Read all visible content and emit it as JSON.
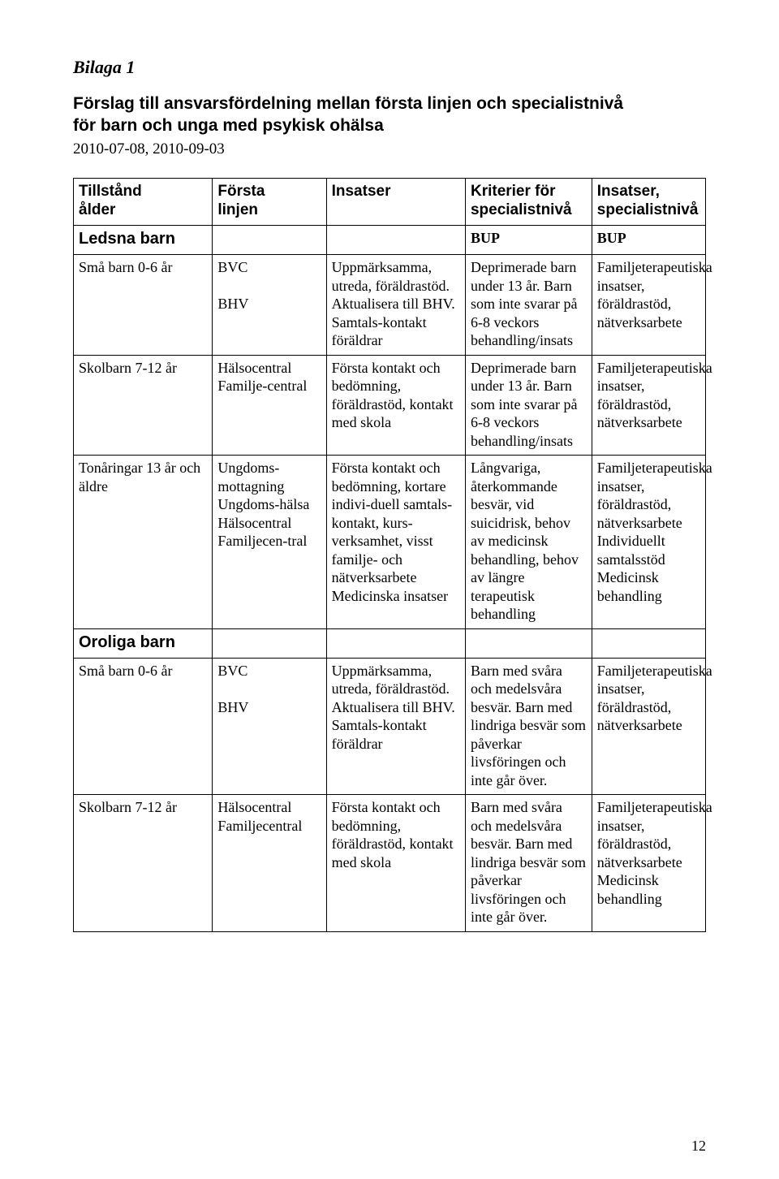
{
  "bilaga": "Bilaga 1",
  "title_line1": "Förslag till ansvarsfördelning mellan första linjen och specialistnivå",
  "title_line2": "för barn och unga med psykisk ohälsa",
  "dates": "2010-07-08, 2010-09-03",
  "page_number": "12",
  "header": {
    "c1a": "Tillstånd",
    "c1b": "ålder",
    "c2a": "Första",
    "c2b": "linjen",
    "c3": "Insatser",
    "c4a": "Kriterier för",
    "c4b": "specialistnivå",
    "c5a": "Insatser,",
    "c5b": "specialistnivå"
  },
  "sections": {
    "ledsna": "Ledsna barn",
    "oroliga": "Oroliga barn",
    "bup": "BUP"
  },
  "rows": {
    "r1": {
      "age": "Små barn 0-6 år",
      "col2": "BVC\n\nBHV",
      "col3": "Uppmärksamma, utreda, föräldrastöd. Aktualisera till BHV. Samtals-kontakt föräldrar",
      "col4": "Deprimerade barn under 13 år. Barn som inte svarar på 6-8 veckors behandling/insats",
      "col5": "Familjeterapeutiska insatser, föräldrastöd, nätverksarbete"
    },
    "r2": {
      "age": "Skolbarn 7-12 år",
      "col2": "Hälsocentral Familje-central",
      "col3": "Första kontakt och bedömning, föräldrastöd, kontakt med skola",
      "col4": "Deprimerade barn under 13 år. Barn som inte svarar på 6-8 veckors behandling/insats",
      "col5": "Familjeterapeutiska insatser, föräldrastöd, nätverksarbete"
    },
    "r3": {
      "age": "Tonåringar 13 år och äldre",
      "col2": "Ungdoms-mottagning Ungdoms-hälsa Hälsocentral Familjecen-tral",
      "col3": "Första kontakt och bedömning, kortare indivi-duell samtals-kontakt, kurs-verksamhet, visst familje- och nätverksarbete Medicinska insatser",
      "col4": "Långvariga, återkommande besvär, vid suicidrisk, behov av medicinsk behandling, behov av längre terapeutisk behandling",
      "col5": "Familjeterapeutiska insatser, föräldrastöd, nätverksarbete Individuellt samtalsstöd Medicinsk behandling"
    },
    "r4": {
      "age": "Små barn 0-6 år",
      "col2": "BVC\n\nBHV",
      "col3": "Uppmärksamma, utreda, föräldrastöd. Aktualisera till BHV. Samtals-kontakt föräldrar",
      "col4": "Barn med svåra och medelsvåra besvär. Barn med lindriga besvär som påverkar livsföringen och inte går över.",
      "col5": "Familjeterapeutiska insatser, föräldrastöd, nätverksarbete"
    },
    "r5": {
      "age": "Skolbarn 7-12 år",
      "col2": "Hälsocentral Familjecentral",
      "col3": "Första kontakt och bedömning, föräldrastöd, kontakt med skola",
      "col4": "Barn med svåra och medelsvåra besvär. Barn med lindriga besvär som påverkar livsföringen och inte går över.",
      "col5": "Familjeterapeutiska insatser, föräldrastöd, nätverksarbete Medicinsk behandling"
    }
  }
}
